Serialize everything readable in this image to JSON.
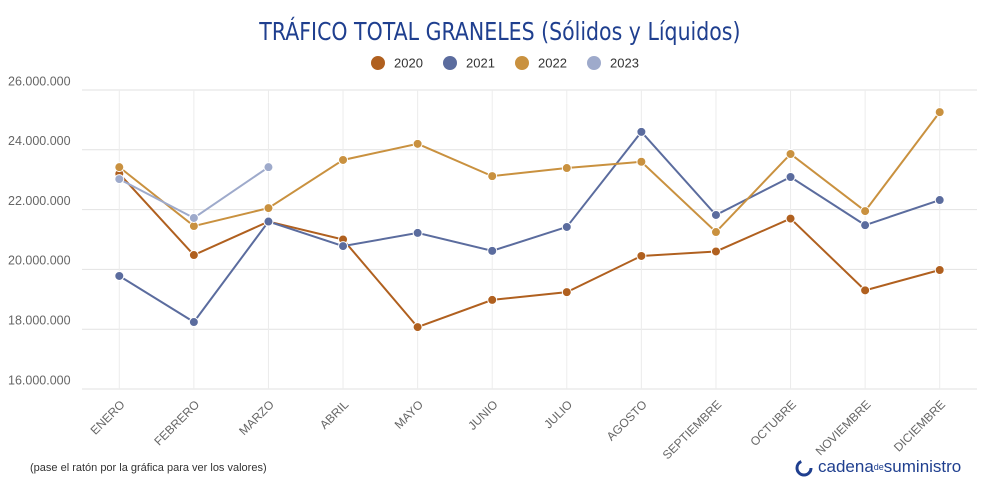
{
  "chart_data": {
    "type": "line",
    "title": "TRÁFICO TOTAL GRANELES (Sólidos y Líquidos)",
    "categories": [
      "ENERO",
      "FEBRERO",
      "MARZO",
      "ABRIL",
      "MAYO",
      "JUNIO",
      "JULIO",
      "AGOSTO",
      "SEPTIEMBRE",
      "OCTUBRE",
      "NOVIEMBRE",
      "DICIEMBRE"
    ],
    "series": [
      {
        "name": "2020",
        "color": "#b0601f",
        "values": [
          23200000,
          20480000,
          21600000,
          21000000,
          18070000,
          18980000,
          19240000,
          20450000,
          20600000,
          21700000,
          19300000,
          19980000
        ]
      },
      {
        "name": "2021",
        "color": "#5b6c9e",
        "values": [
          19780000,
          18240000,
          21600000,
          20780000,
          21220000,
          20620000,
          21420000,
          24600000,
          21820000,
          23090000,
          21480000,
          22320000
        ]
      },
      {
        "name": "2022",
        "color": "#c9913f",
        "values": [
          23420000,
          21450000,
          22050000,
          23660000,
          24200000,
          23120000,
          23390000,
          23600000,
          21250000,
          23860000,
          21950000,
          25260000
        ]
      },
      {
        "name": "2023",
        "color": "#9eaacb",
        "values": [
          23020000,
          21720000,
          23420000,
          null,
          null,
          null,
          null,
          null,
          null,
          null,
          null,
          null
        ]
      }
    ],
    "ylim": [
      16000000,
      26000000
    ],
    "yticks": [
      {
        "value": 16000000,
        "label": "16.000.000"
      },
      {
        "value": 18000000,
        "label": "18.000.000"
      },
      {
        "value": 20000000,
        "label": "20.000.000"
      },
      {
        "value": 22000000,
        "label": "22.000.000"
      },
      {
        "value": 24000000,
        "label": "24.000.000"
      },
      {
        "value": 26000000,
        "label": "26.000.000"
      }
    ],
    "grid": true,
    "legend": "top",
    "note": "(pase el ratón por la gráfica para ver los valores)",
    "logo": {
      "part1": "cadena",
      "part2": "de",
      "part3": "suministro"
    }
  }
}
